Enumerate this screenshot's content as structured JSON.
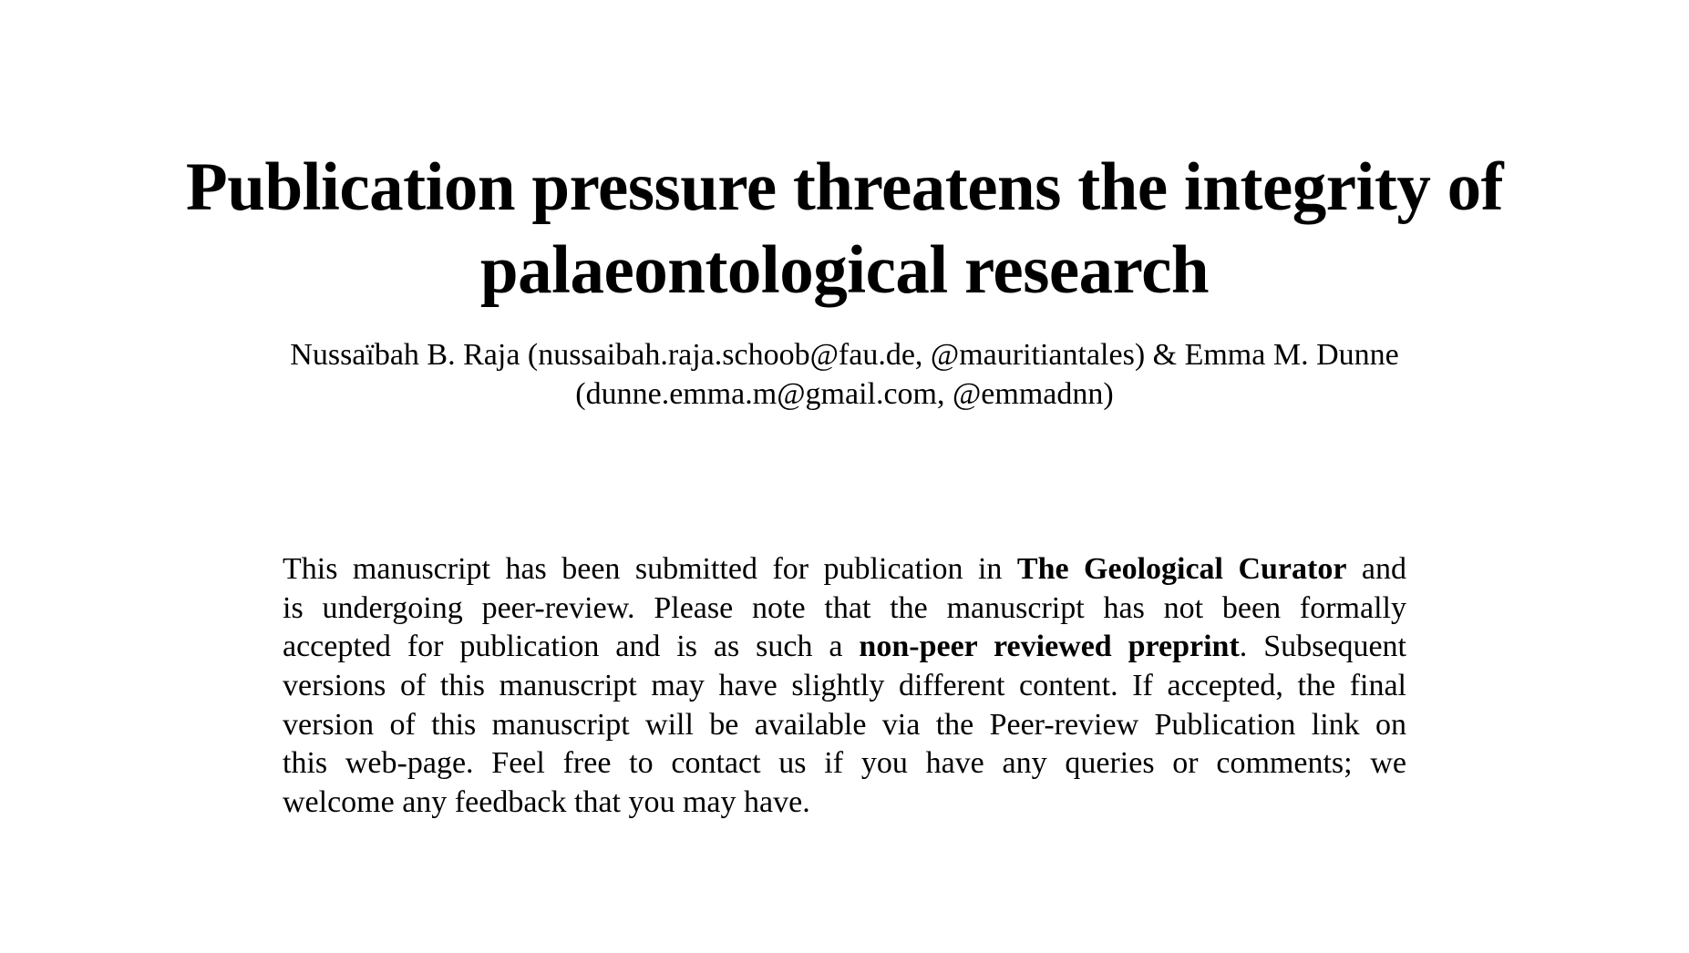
{
  "paper": {
    "title_line1": "Publication pressure threatens the integrity of",
    "title_line2": "palaeontological research",
    "authors_line1": "Nussaïbah B. Raja (nussaibah.raja.schoob@fau.de, @mauritiantales) & Emma M. Dunne",
    "authors_line2": "(dunne.emma.m@gmail.com, @emmadnn)"
  },
  "notice": {
    "l1_a": "This manuscript has been submitted for publication in ",
    "l1_bold": "The Geological Curator",
    "l1_b": " and",
    "l2": "is undergoing peer-review.  Please note that the manuscript has not been formally",
    "l3_a": "accepted for publication and is as such a ",
    "l3_bold": "non-peer reviewed preprint",
    "l3_b": ".  Subsequent",
    "l4": "versions of this manuscript may have slightly different content. If accepted, the final",
    "l5": "version of this manuscript will be available via the Peer-review Publication link on",
    "l6": "this web-page.  Feel free to contact us if you have any queries or comments; we",
    "l7": "welcome any feedback that you may have."
  }
}
